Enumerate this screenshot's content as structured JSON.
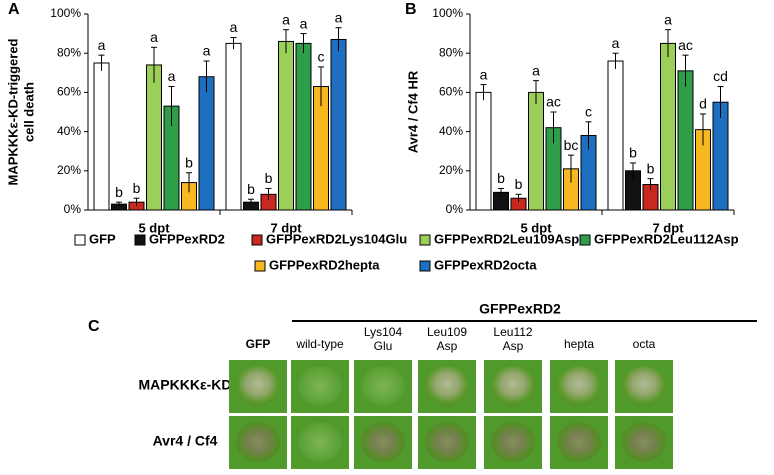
{
  "chart_data": [
    {
      "type": "bar",
      "panel": "A",
      "ylabel": [
        "MAPKKKε-KD-triggered",
        "cell death"
      ],
      "categories": [
        "5 dpt",
        "7 dpt"
      ],
      "ylim": [
        0,
        100
      ],
      "yticks": [
        {
          "value": 0,
          "label": "0%"
        },
        {
          "value": 20,
          "label": "20%"
        },
        {
          "value": 40,
          "label": "40%"
        },
        {
          "value": 60,
          "label": "60%"
        },
        {
          "value": 80,
          "label": "80%"
        },
        {
          "value": 100,
          "label": "100%"
        }
      ],
      "series": [
        {
          "name": "GFP",
          "color": "#ffffff",
          "values": [
            75,
            85
          ],
          "errors": [
            4,
            3
          ],
          "letters": [
            "a",
            "a"
          ]
        },
        {
          "name": "GFPPexRD2",
          "color": "#111111",
          "values": [
            3,
            4
          ],
          "errors": [
            1,
            1.5
          ],
          "letters": [
            "b",
            "b"
          ]
        },
        {
          "name": "GFPPexRD2Lys104Glu",
          "color": "#c8281e",
          "values": [
            4,
            8
          ],
          "errors": [
            2,
            3
          ],
          "letters": [
            "b",
            "b"
          ]
        },
        {
          "name": "GFPPexRD2Leu109Asp",
          "color": "#9ccf5a",
          "values": [
            74,
            86
          ],
          "errors": [
            9,
            6
          ],
          "letters": [
            "a",
            "a"
          ]
        },
        {
          "name": "GFPPexRD2Leu112Asp",
          "color": "#2e9e48",
          "values": [
            53,
            85
          ],
          "errors": [
            10,
            5
          ],
          "letters": [
            "a",
            "a"
          ]
        },
        {
          "name": "GFPPexRD2hepta",
          "color": "#f7b820",
          "values": [
            14,
            63
          ],
          "errors": [
            5,
            10
          ],
          "letters": [
            "b",
            "c"
          ]
        },
        {
          "name": "GFPPexRD2octa",
          "color": "#1f6fc0",
          "values": [
            68,
            87
          ],
          "errors": [
            8,
            6
          ],
          "letters": [
            "a",
            "a"
          ]
        }
      ]
    },
    {
      "type": "bar",
      "panel": "B",
      "ylabel": [
        "Avr4 / Cf4 HR"
      ],
      "categories": [
        "5 dpt",
        "7 dpt"
      ],
      "ylim": [
        0,
        100
      ],
      "yticks": [
        {
          "value": 0,
          "label": "0%"
        },
        {
          "value": 20,
          "label": "20%"
        },
        {
          "value": 40,
          "label": "40%"
        },
        {
          "value": 60,
          "label": "60%"
        },
        {
          "value": 80,
          "label": "80%"
        },
        {
          "value": 100,
          "label": "100%"
        }
      ],
      "series": [
        {
          "color": "#ffffff",
          "values": [
            60,
            76
          ],
          "errors": [
            4,
            4
          ],
          "letters": [
            "a",
            "a"
          ]
        },
        {
          "color": "#111111",
          "values": [
            9,
            20
          ],
          "errors": [
            2,
            4
          ],
          "letters": [
            "b",
            "b"
          ]
        },
        {
          "color": "#c8281e",
          "values": [
            6,
            13
          ],
          "errors": [
            2,
            3
          ],
          "letters": [
            "b",
            "b"
          ]
        },
        {
          "color": "#9ccf5a",
          "values": [
            60,
            85
          ],
          "errors": [
            6,
            7
          ],
          "letters": [
            "a",
            "a"
          ]
        },
        {
          "color": "#2e9e48",
          "values": [
            42,
            71
          ],
          "errors": [
            8,
            8
          ],
          "letters": [
            "ac",
            "ac"
          ]
        },
        {
          "color": "#f7b820",
          "values": [
            21,
            41
          ],
          "errors": [
            7,
            8
          ],
          "letters": [
            "bc",
            "d"
          ]
        },
        {
          "color": "#1f6fc0",
          "values": [
            38,
            55
          ],
          "errors": [
            7,
            8
          ],
          "letters": [
            "c",
            "cd"
          ]
        }
      ]
    }
  ],
  "panel_c": {
    "label": "C",
    "group": "GFPPexRD2",
    "columns": [
      "GFP",
      "wild-type",
      "Lys104 Glu",
      "Leu109 Asp",
      "Leu112 Asp",
      "hepta",
      "octa"
    ],
    "rows": [
      "MAPKKKε-KD",
      "Avr4 / Cf4"
    ]
  }
}
